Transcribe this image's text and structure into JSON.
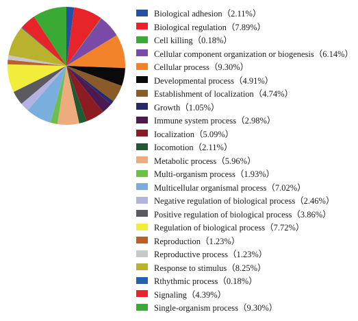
{
  "chart_data": {
    "type": "pie",
    "legend_position": "right",
    "series": [
      {
        "label": "Biological adhesion（2.11%）",
        "value": 2.11,
        "color": "#2450a8"
      },
      {
        "label": "Biological regulation（7.89%）",
        "value": 7.89,
        "color": "#e8242b"
      },
      {
        "label": "Cell killing（0.18%）",
        "value": 0.18,
        "color": "#3aaa35"
      },
      {
        "label": "Cellular component organization or biogenesis（6.14%）",
        "value": 6.14,
        "color": "#7a4aa8"
      },
      {
        "label": "Cellular process（9.30%）",
        "value": 9.3,
        "color": "#f3832a"
      },
      {
        "label": "Developmental process（4.91%）",
        "value": 4.91,
        "color": "#0a0a0a"
      },
      {
        "label": "Establishment of localization（4.74%）",
        "value": 4.74,
        "color": "#8a5a28"
      },
      {
        "label": "Growth（1.05%）",
        "value": 1.05,
        "color": "#262a6a"
      },
      {
        "label": "Immune system process（2.98%）",
        "value": 2.98,
        "color": "#4a1a50"
      },
      {
        "label": "Iocalization（5.09%）",
        "value": 5.09,
        "color": "#8a1c22"
      },
      {
        "label": "Iocomotion（2.11%）",
        "value": 2.11,
        "color": "#1f5a32"
      },
      {
        "label": "Metabolic process（5.96%）",
        "value": 5.96,
        "color": "#eeab7e"
      },
      {
        "label": "Multi-organism process（1.93%）",
        "value": 1.93,
        "color": "#6cc04a"
      },
      {
        "label": "Multicellular organismal process（7.02%）",
        "value": 7.02,
        "color": "#7aaedc"
      },
      {
        "label": "Negative regulation of biological process（2.46%）",
        "value": 2.46,
        "color": "#b4b2e0"
      },
      {
        "label": "Positive regulation of biological process（3.86%）",
        "value": 3.86,
        "color": "#5a5a60"
      },
      {
        "label": "Regulation of biological process（7.72%）",
        "value": 7.72,
        "color": "#f2ec3a"
      },
      {
        "label": "Reproduction（1.23%）",
        "value": 1.23,
        "color": "#b9612c"
      },
      {
        "label": "Reproductive process（1.23%）",
        "value": 1.23,
        "color": "#c8c8c8"
      },
      {
        "label": "Response to stimulus（8.25%）",
        "value": 8.25,
        "color": "#b8b22e"
      },
      {
        "label": "Rthythmic process（0.18%）",
        "value": 0.18,
        "color": "#2460b4"
      },
      {
        "label": "Signaling（4.39%）",
        "value": 4.39,
        "color": "#e8242b"
      },
      {
        "label": "Single-organism process（9.30%）",
        "value": 9.3,
        "color": "#3aaa35"
      }
    ]
  }
}
